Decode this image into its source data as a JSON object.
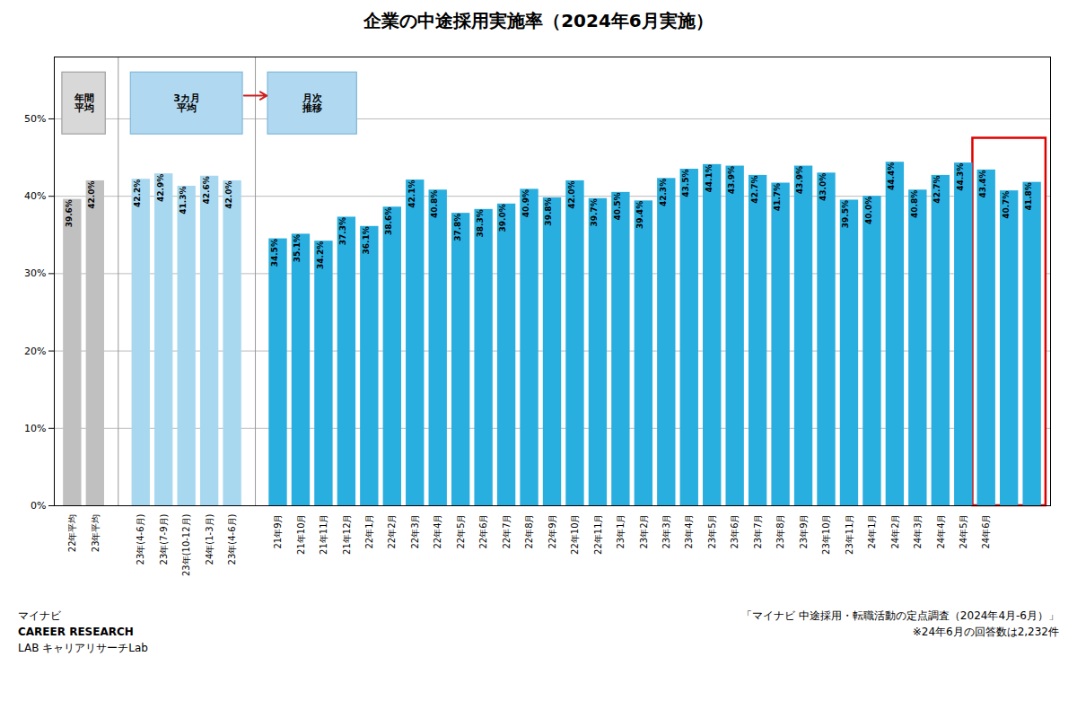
{
  "chart_data": {
    "type": "bar",
    "title": "企業の中途採用実施率（2024年6月実施）",
    "categories": [
      "22年平均",
      "23年平均",
      "23年(4-6月)",
      "23年(7-9月)",
      "23年(10-12月)",
      "24年(1-3月)",
      "23年(4-6月)",
      "21年9月",
      "21年10月",
      "21年11月",
      "21年12月",
      "22年1月",
      "22年2月",
      "22年3月",
      "22年4月",
      "22年5月",
      "22年6月",
      "22年7月",
      "22年8月",
      "22年9月",
      "22年10月",
      "22年11月",
      "23年1月",
      "23年2月",
      "23年3月",
      "23年4月",
      "23年5月",
      "23年6月",
      "23年7月",
      "23年8月",
      "23年9月",
      "23年10月",
      "23年11月",
      "24年1月",
      "24年2月",
      "24年3月",
      "24年4月",
      "24年5月",
      "24年6月",
      null,
      null
    ],
    "values": [
      39.6,
      42.0,
      42.2,
      42.9,
      41.3,
      42.6,
      42.0,
      34.5,
      35.1,
      34.2,
      37.3,
      36.1,
      38.6,
      42.1,
      40.8,
      37.8,
      38.3,
      39.0,
      40.9,
      39.8,
      42.0,
      39.7,
      40.5,
      39.4,
      42.3,
      43.5,
      44.1,
      43.9,
      42.7,
      41.7,
      43.9,
      43.0,
      39.5,
      40.0,
      44.4,
      40.8,
      42.7,
      44.3,
      43.4,
      40.7,
      41.8
    ],
    "value_labels": [
      "39.6%",
      "42.0%",
      "42.2%",
      "42.9%",
      "41.3%",
      "42.6%",
      "42.0%",
      "34.5%",
      "35.1%",
      "34.2%",
      "37.3%",
      "36.1%",
      "38.6%",
      "42.1%",
      "40.8%",
      "37.8%",
      "38.3%",
      "39.0%",
      "40.9%",
      "39.8%",
      "42.0%",
      "39.7%",
      "40.5%",
      "39.4%",
      "42.3%",
      "43.5%",
      "44.1%",
      "43.9%",
      "42.7%",
      "41.7%",
      "43.9%",
      "43.0%",
      "39.5%",
      "40.0%",
      "44.4%",
      "40.8%",
      "42.7%",
      "44.3%",
      "43.4%",
      "40.7%",
      "41.8%"
    ],
    "colors": [
      "#c0c0c0",
      "#c0c0c0",
      "#a8d8f0",
      "#a8d8f0",
      "#a8d8f0",
      "#a8d8f0",
      "#a8d8f0",
      "#29aee0",
      "#29aee0",
      "#29aee0",
      "#29aee0",
      "#29aee0",
      "#29aee0",
      "#29aee0",
      "#29aee0",
      "#29aee0",
      "#29aee0",
      "#29aee0",
      "#29aee0",
      "#29aee0",
      "#29aee0",
      "#29aee0",
      "#29aee0",
      "#29aee0",
      "#29aee0",
      "#29aee0",
      "#29aee0",
      "#29aee0",
      "#29aee0",
      "#29aee0",
      "#29aee0",
      "#29aee0",
      "#29aee0",
      "#29aee0",
      "#29aee0",
      "#29aee0",
      "#29aee0",
      "#29aee0",
      "#29aee0",
      "#29aee0",
      "#29aee0"
    ],
    "ylim": [
      0,
      58
    ],
    "yticks": [
      {
        "value": 0,
        "label": "0%"
      },
      {
        "value": 10,
        "label": "10%"
      },
      {
        "value": 20,
        "label": "20%"
      },
      {
        "value": 30,
        "label": "30%"
      },
      {
        "value": 40,
        "label": "40%"
      },
      {
        "value": 50,
        "label": "50%"
      }
    ],
    "grid": true,
    "data_labels": true,
    "annotations": [
      "年間\n平均",
      "3カ月\n平均",
      "月次\n推移",
      "「マイナビ 中途採用・転職活動の定点調査（2024年4月-6月）」",
      "※24年6月の回答数は2,232件",
      "マイナビ",
      "CAREER RESEARCH",
      "LAB  キャリアリサーチLab"
    ]
  }
}
